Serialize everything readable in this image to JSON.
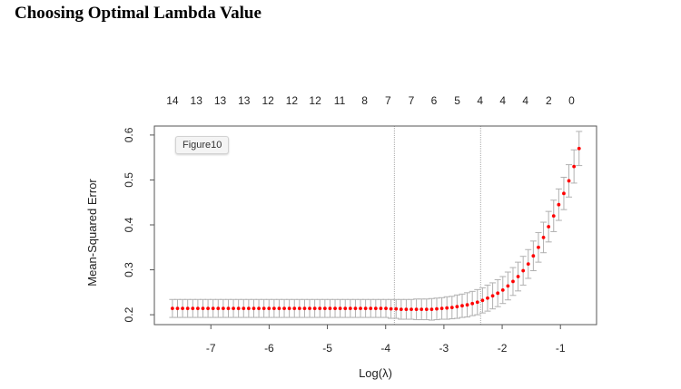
{
  "page": {
    "title": "Choosing Optimal Lambda Value",
    "figure_tag": "Figure10"
  },
  "chart_data": {
    "type": "scatter",
    "xlabel": "Log(λ)",
    "ylabel": "Mean-Squared Error",
    "xlim": [
      -7.97,
      -0.38
    ],
    "ylim": [
      0.178,
      0.62
    ],
    "x_ticks": [
      -7,
      -6,
      -5,
      -4,
      -3,
      -2,
      -1
    ],
    "y_ticks": [
      0.2,
      0.3,
      0.4,
      0.5,
      0.6
    ],
    "top_axis_labels": [
      "14",
      "13",
      "13",
      "13",
      "12",
      "12",
      "12",
      "11",
      "8",
      "7",
      "7",
      "6",
      "5",
      "4",
      "4",
      "4",
      "2",
      "0"
    ],
    "top_axis_positions": [
      -7.66,
      -7.25,
      -6.84,
      -6.43,
      -6.02,
      -5.61,
      -5.21,
      -4.79,
      -4.36,
      -3.96,
      -3.56,
      -3.17,
      -2.77,
      -2.38,
      -1.99,
      -1.6,
      -1.2,
      -0.81
    ],
    "vlines": [
      -3.85,
      -2.37
    ],
    "marker_color": "#ff0000",
    "errorbar_color": "#b0b0b0",
    "vline_color": "#a8a8a8",
    "series": [
      {
        "x_start": -7.66,
        "x_end": -0.68,
        "mse": [
          0.214,
          0.214,
          0.214,
          0.214,
          0.214,
          0.214,
          0.214,
          0.214,
          0.214,
          0.214,
          0.214,
          0.214,
          0.214,
          0.214,
          0.214,
          0.214,
          0.214,
          0.214,
          0.214,
          0.214,
          0.214,
          0.214,
          0.214,
          0.214,
          0.214,
          0.214,
          0.214,
          0.214,
          0.214,
          0.214,
          0.214,
          0.214,
          0.214,
          0.214,
          0.214,
          0.214,
          0.214,
          0.214,
          0.214,
          0.214,
          0.214,
          0.214,
          0.214,
          0.213,
          0.213,
          0.212,
          0.212,
          0.212,
          0.212,
          0.212,
          0.212,
          0.212,
          0.213,
          0.214,
          0.215,
          0.216,
          0.218,
          0.22,
          0.222,
          0.225,
          0.228,
          0.232,
          0.237,
          0.242,
          0.248,
          0.255,
          0.264,
          0.274,
          0.285,
          0.298,
          0.313,
          0.331,
          0.35,
          0.372,
          0.396,
          0.42,
          0.445,
          0.47,
          0.498,
          0.53,
          0.57
        ],
        "se": [
          0.02,
          0.02,
          0.02,
          0.02,
          0.02,
          0.02,
          0.02,
          0.02,
          0.02,
          0.02,
          0.02,
          0.02,
          0.02,
          0.02,
          0.02,
          0.02,
          0.02,
          0.02,
          0.02,
          0.02,
          0.02,
          0.02,
          0.02,
          0.02,
          0.02,
          0.02,
          0.02,
          0.02,
          0.02,
          0.02,
          0.02,
          0.02,
          0.02,
          0.02,
          0.02,
          0.02,
          0.02,
          0.02,
          0.02,
          0.02,
          0.02,
          0.02,
          0.02,
          0.021,
          0.021,
          0.022,
          0.022,
          0.022,
          0.023,
          0.023,
          0.023,
          0.024,
          0.024,
          0.024,
          0.025,
          0.025,
          0.026,
          0.026,
          0.027,
          0.027,
          0.028,
          0.028,
          0.029,
          0.029,
          0.03,
          0.03,
          0.031,
          0.031,
          0.032,
          0.032,
          0.032,
          0.033,
          0.033,
          0.034,
          0.034,
          0.035,
          0.035,
          0.036,
          0.036,
          0.037,
          0.038
        ]
      }
    ]
  }
}
